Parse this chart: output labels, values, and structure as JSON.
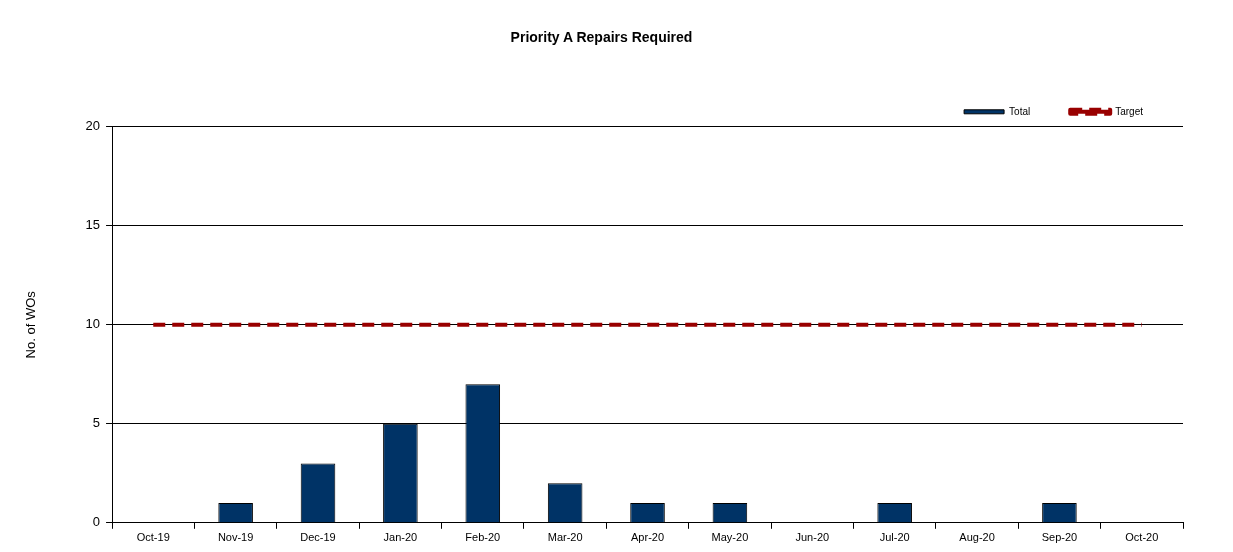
{
  "chart_data": {
    "type": "bar",
    "title": "Priority A Repairs Required",
    "ylabel": "No. of WOs",
    "categories": [
      "Oct-19",
      "Nov-19",
      "Dec-19",
      "Jan-20",
      "Feb-20",
      "Mar-20",
      "Apr-20",
      "May-20",
      "Jun-20",
      "Jul-20",
      "Aug-20",
      "Sep-20",
      "Oct-20"
    ],
    "series": [
      {
        "name": "Total",
        "color": "#003366",
        "values": [
          0,
          1,
          3,
          5,
          7,
          2,
          1,
          1,
          0,
          1,
          0,
          1,
          0
        ]
      },
      {
        "name": "Target",
        "type": "line",
        "color": "#990000",
        "line_style": "dashed",
        "marker": "none",
        "values": [
          10,
          10,
          10,
          10,
          10,
          10,
          10,
          10,
          10,
          10,
          10,
          10,
          10
        ]
      }
    ],
    "ylim": [
      0,
      20
    ],
    "yticks": [
      0,
      5,
      10,
      15,
      20
    ],
    "grid": "y",
    "legend": "top right"
  }
}
